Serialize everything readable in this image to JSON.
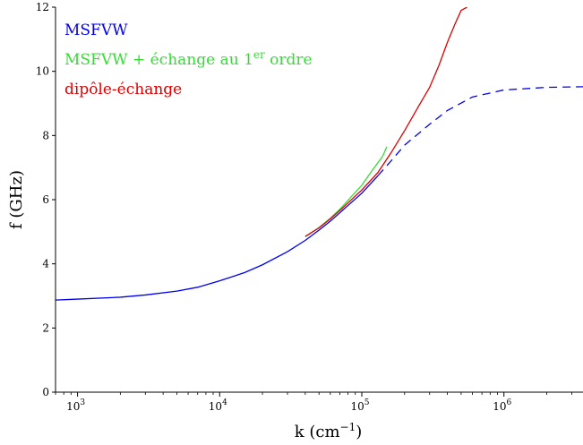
{
  "chart_data": {
    "type": "line",
    "xscale": "log",
    "xlim": [
      700,
      3600000
    ],
    "ylim": [
      0,
      12
    ],
    "xlabel": "k (cm",
    "xlabel_exp": "−1",
    "xlabel_close": ")",
    "ylabel": "f (GHz)",
    "x_ticks": [
      {
        "value": 1000,
        "base": "10",
        "exp": "3"
      },
      {
        "value": 10000,
        "base": "10",
        "exp": "4"
      },
      {
        "value": 100000,
        "base": "10",
        "exp": "5"
      },
      {
        "value": 1000000,
        "base": "10",
        "exp": "6"
      }
    ],
    "y_ticks": [
      {
        "value": 0,
        "label": "0"
      },
      {
        "value": 2,
        "label": "2"
      },
      {
        "value": 4,
        "label": "4"
      },
      {
        "value": 6,
        "label": "6"
      },
      {
        "value": 8,
        "label": "8"
      },
      {
        "value": 10,
        "label": "10"
      },
      {
        "value": 12,
        "label": "12"
      }
    ],
    "legend_position": "top-left",
    "series": [
      {
        "name": "MSFVW",
        "legend": {
          "text": "MSFVW"
        },
        "color": "#0000ee",
        "style": "solid-then-dashed",
        "dash_from_x": 130000,
        "x": [
          700,
          1000,
          2000,
          3000,
          5000,
          7000,
          10000,
          15000,
          20000,
          30000,
          40000,
          50000,
          60000,
          70000,
          80000,
          100000,
          130000,
          160000,
          200000,
          300000,
          400000,
          600000,
          1000000,
          2000000,
          3600000
        ],
        "y": [
          2.87,
          2.9,
          2.96,
          3.03,
          3.15,
          3.27,
          3.47,
          3.73,
          3.97,
          4.38,
          4.73,
          5.05,
          5.33,
          5.59,
          5.82,
          6.2,
          6.75,
          7.2,
          7.7,
          8.35,
          8.78,
          9.2,
          9.42,
          9.5,
          9.52
        ]
      },
      {
        "name": "MSFVW + échange au 1er ordre",
        "legend": {
          "text": "MSFVW + échange au 1",
          "sup": "er",
          "text_after": " ordre"
        },
        "color": "#33dd33",
        "style": "solid",
        "x": [
          40000,
          50000,
          60000,
          70000,
          80000,
          100000,
          120000,
          140000,
          150000
        ],
        "y": [
          4.85,
          5.13,
          5.42,
          5.7,
          5.98,
          6.45,
          6.95,
          7.35,
          7.65
        ]
      },
      {
        "name": "dipôle-échange",
        "legend": {
          "text": "dipôle-échange"
        },
        "color": "#dd0000",
        "style": "solid",
        "x": [
          40000,
          50000,
          60000,
          70000,
          80000,
          100000,
          130000,
          160000,
          200000,
          250000,
          300000,
          350000,
          400000,
          450000,
          500000,
          550000
        ],
        "y": [
          4.85,
          5.12,
          5.4,
          5.66,
          5.9,
          6.3,
          6.85,
          7.45,
          8.15,
          8.9,
          9.5,
          10.2,
          10.9,
          11.45,
          11.9,
          12.0
        ]
      }
    ]
  }
}
